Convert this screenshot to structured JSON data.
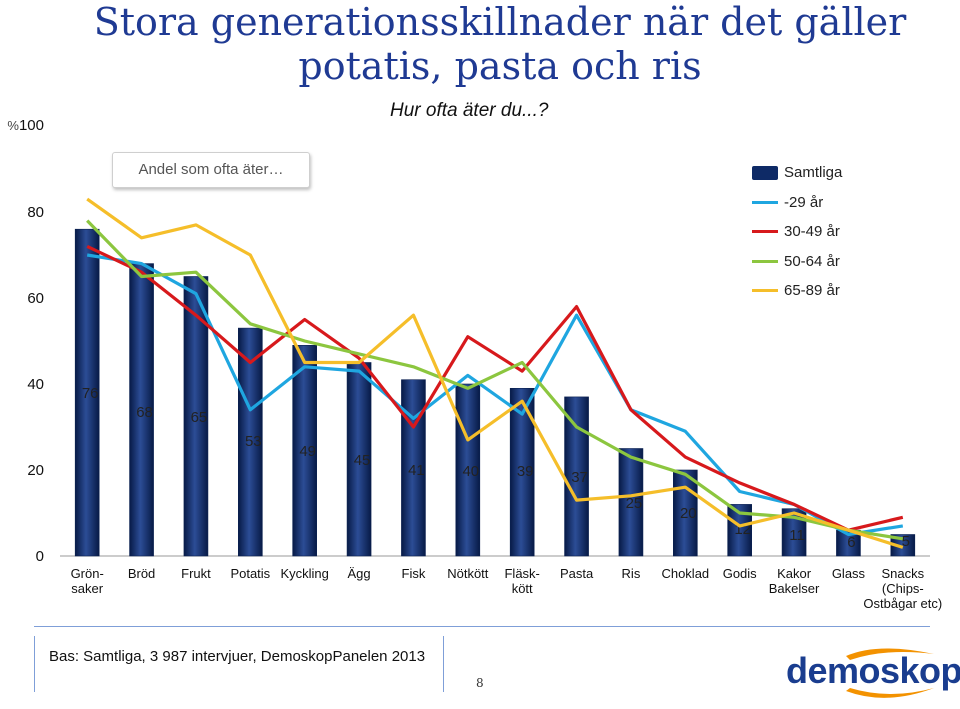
{
  "header": {
    "title_line1": "Stora generationsskillnader  när det gäller",
    "title_line2": "potatis, pasta och ris",
    "subtitle": "Hur ofta äter du...?"
  },
  "annotation_box": "Andel som ofta äter…",
  "y_axis": {
    "ticks": [
      "0",
      "20",
      "40",
      "60",
      "80",
      "100"
    ],
    "unit": "%"
  },
  "footer": {
    "bas": "Bas: Samtliga, 3 987 intervjuer, DemoskopPanelen 2013",
    "page": "8",
    "logo": "demoskop"
  },
  "colors": {
    "bar": "#0e2a66",
    "y29": "#1fa6e0",
    "y30_49": "#d7191c",
    "y50_64": "#8cc63f",
    "y65_89": "#f5be2a",
    "title": "#1f3a93"
  },
  "chart_data": {
    "type": "bar",
    "title": "Stora generationsskillnader  när det gäller potatis, pasta och ris",
    "subtitle": "Hur ofta äter du...?",
    "ylim": [
      0,
      100
    ],
    "categories": [
      "Grön-\nsaker",
      "Bröd",
      "Frukt",
      "Potatis",
      "Kyckling",
      "Ägg",
      "Fisk",
      "Nötkött",
      "Fläsk-\nkött",
      "Pasta",
      "Ris",
      "Choklad",
      "Godis",
      "Kakor\nBakelser",
      "Glass",
      "Snacks\n(Chips-\nOstbågar etc)"
    ],
    "series": [
      {
        "name": "Samtliga",
        "kind": "bar",
        "values": [
          76,
          68,
          65,
          53,
          49,
          45,
          41,
          40,
          39,
          37,
          25,
          20,
          12,
          11,
          6,
          5
        ]
      },
      {
        "name": "-29 år",
        "kind": "line",
        "values": [
          70,
          68,
          61,
          34,
          44,
          43,
          32,
          42,
          33,
          56,
          34,
          29,
          15,
          12,
          5,
          7
        ]
      },
      {
        "name": "30-49 år",
        "kind": "line",
        "values": [
          72,
          66,
          56,
          45,
          55,
          46,
          30,
          51,
          43,
          58,
          34,
          23,
          17,
          12,
          6,
          9
        ]
      },
      {
        "name": "50-64 år",
        "kind": "line",
        "values": [
          78,
          65,
          66,
          54,
          50,
          47,
          44,
          39,
          45,
          30,
          23,
          19,
          10,
          9,
          6,
          4
        ]
      },
      {
        "name": "65-89 år",
        "kind": "line",
        "values": [
          83,
          74,
          77,
          70,
          45,
          45,
          56,
          27,
          36,
          13,
          14,
          16,
          7,
          10,
          6,
          2
        ]
      }
    ]
  }
}
